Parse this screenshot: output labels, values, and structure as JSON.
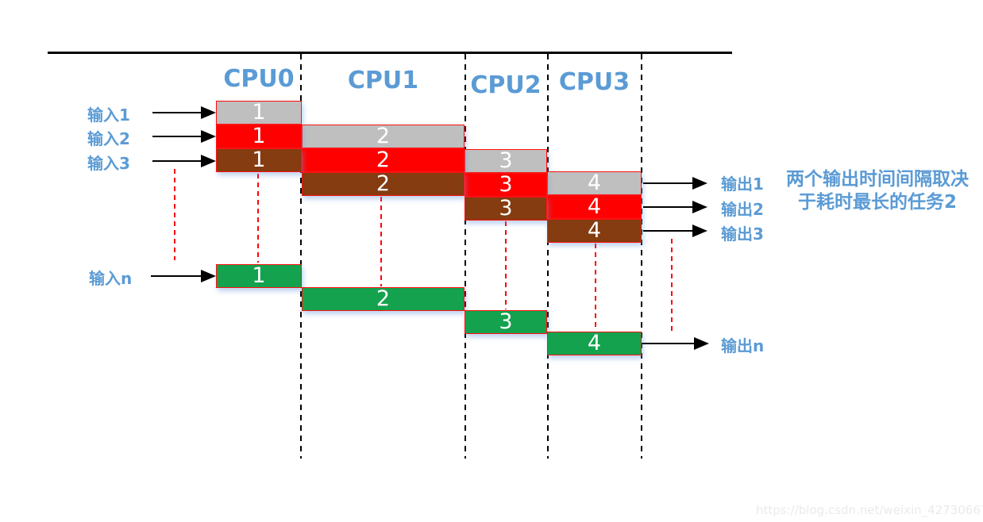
{
  "cpus": [
    "CPU0",
    "CPU1",
    "CPU2",
    "CPU3"
  ],
  "inputs": [
    "输入1",
    "输入2",
    "输入3",
    "输入n"
  ],
  "outputs": [
    "输出1",
    "输出2",
    "输出3",
    "输出n"
  ],
  "annotation": {
    "line1": "两个输出时间间隔取决",
    "line2": "于耗时最长的任务2"
  },
  "watermark": "https://blog.csdn.net/weixin_42730667",
  "colors": {
    "gray": "#BFBFBF",
    "red": "#FF0000",
    "brown": "#843C10",
    "green": "#14A24E",
    "accent_text": "#5B9BD5",
    "bar_border": "#FF1010",
    "dash_red": "#FF0000",
    "line_black": "#000000"
  },
  "schedule": {
    "columns": [
      "CPU0",
      "CPU1",
      "CPU2",
      "CPU3"
    ],
    "streams": [
      {
        "name": "input-1",
        "color": "gray",
        "tasks": [
          "1",
          "2",
          "3",
          "4"
        ]
      },
      {
        "name": "input-2",
        "color": "red",
        "tasks": [
          "1",
          "2",
          "3",
          "4"
        ]
      },
      {
        "name": "input-3",
        "color": "brown",
        "tasks": [
          "1",
          "2",
          "3",
          "4"
        ]
      },
      {
        "name": "input-n",
        "color": "green",
        "tasks": [
          "1",
          "2",
          "3",
          "4"
        ]
      }
    ]
  }
}
